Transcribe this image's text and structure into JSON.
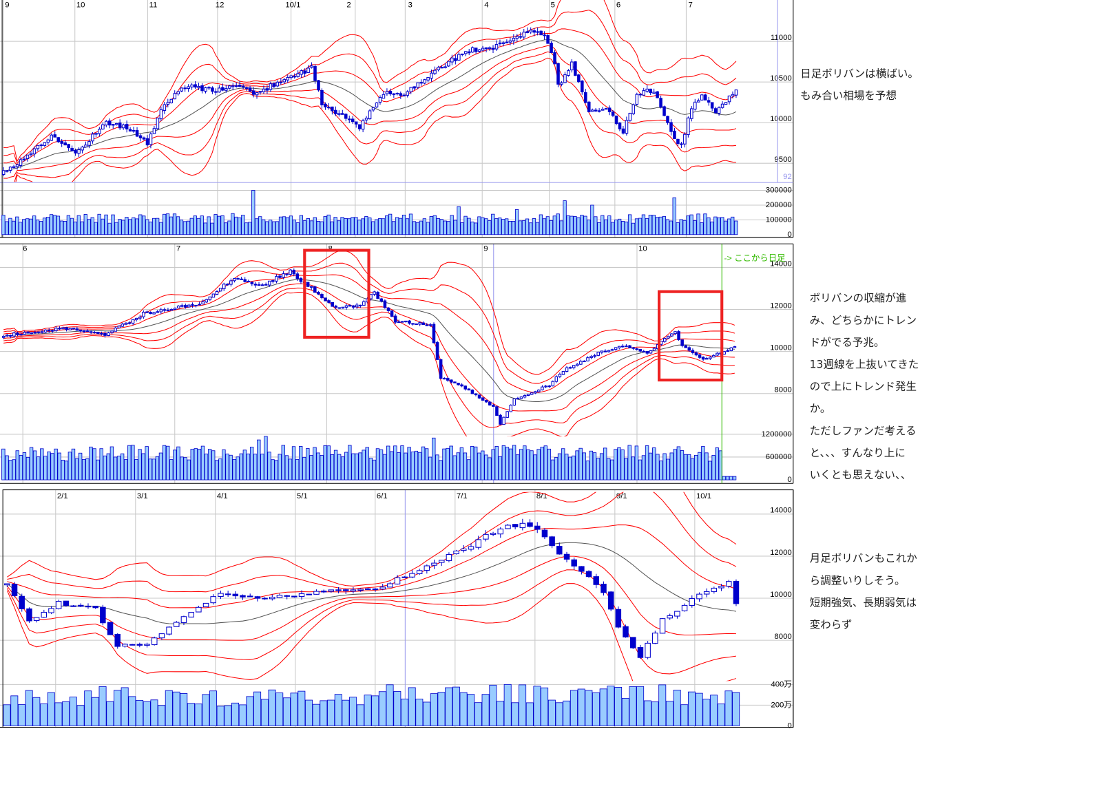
{
  "chart_data": [
    {
      "type": "candlestick",
      "timeframe_hint": "日足",
      "date_labels": [
        "9",
        "10",
        "11",
        "12",
        "10/1",
        "2",
        "3",
        "4",
        "5",
        "6",
        "7"
      ],
      "price_ticks": [
        9500,
        10000,
        10500,
        11000
      ],
      "price_tick_labels": [
        "9500",
        "10000",
        "10500",
        "11000"
      ],
      "volume_tick_labels": [
        "300000",
        "200000",
        "100000",
        "0"
      ],
      "volume_ticks": [
        300000,
        200000,
        100000,
        0
      ],
      "price_marker": "92",
      "candles": 215,
      "approx_closes": [
        [
          0,
          9400
        ],
        [
          5,
          9530
        ],
        [
          14,
          9840
        ],
        [
          21,
          9620
        ],
        [
          30,
          10010
        ],
        [
          37,
          9920
        ],
        [
          42,
          9750
        ],
        [
          47,
          10230
        ],
        [
          53,
          10450
        ],
        [
          61,
          10400
        ],
        [
          68,
          10450
        ],
        [
          74,
          10360
        ],
        [
          82,
          10540
        ],
        [
          90,
          10670
        ],
        [
          93,
          10230
        ],
        [
          102,
          10010
        ],
        [
          104,
          9940
        ],
        [
          111,
          10360
        ],
        [
          117,
          10360
        ],
        [
          127,
          10670
        ],
        [
          136,
          10890
        ],
        [
          144,
          10930
        ],
        [
          154,
          11160
        ],
        [
          158,
          11070
        ],
        [
          161,
          10720
        ],
        [
          162,
          10450
        ],
        [
          166,
          10720
        ],
        [
          171,
          10150
        ],
        [
          176,
          10190
        ],
        [
          181,
          9880
        ],
        [
          185,
          10360
        ],
        [
          190,
          10400
        ],
        [
          195,
          9880
        ],
        [
          198,
          9710
        ],
        [
          201,
          10190
        ],
        [
          204,
          10320
        ],
        [
          208,
          10150
        ],
        [
          214,
          10400
        ]
      ],
      "volume_base": 110000,
      "volume_spikes": [
        [
          73,
          300000
        ],
        [
          133,
          190000
        ],
        [
          150,
          170000
        ],
        [
          164,
          230000
        ],
        [
          196,
          250000
        ],
        [
          172,
          200000
        ]
      ],
      "indicators": [
        "MA",
        "Bollinger ±1σ",
        "±2σ",
        "±3σ"
      ]
    },
    {
      "type": "candlestick",
      "date_labels": [
        "6",
        "7",
        "8",
        "9",
        "10"
      ],
      "price_ticks": [
        8000,
        10000,
        12000,
        14000
      ],
      "price_tick_labels": [
        "8000",
        "10000",
        "12000",
        "14000"
      ],
      "volume_ticks": [
        1200000,
        600000,
        0
      ],
      "volume_tick_labels": [
        "1200000",
        "600000",
        "0"
      ],
      "marker_label": "-> ここから日足",
      "candles": 210,
      "approx_closes": [
        [
          0,
          10780
        ],
        [
          19,
          11120
        ],
        [
          29,
          10780
        ],
        [
          40,
          11800
        ],
        [
          56,
          12300
        ],
        [
          66,
          13490
        ],
        [
          74,
          13150
        ],
        [
          82,
          13830
        ],
        [
          88,
          12980
        ],
        [
          94,
          12140
        ],
        [
          102,
          12140
        ],
        [
          106,
          12810
        ],
        [
          112,
          11460
        ],
        [
          122,
          11290
        ],
        [
          125,
          8750
        ],
        [
          132,
          8240
        ],
        [
          140,
          7390
        ],
        [
          142,
          6540
        ],
        [
          146,
          7730
        ],
        [
          156,
          8410
        ],
        [
          160,
          9090
        ],
        [
          170,
          9930
        ],
        [
          178,
          10270
        ],
        [
          184,
          9930
        ],
        [
          192,
          10950
        ],
        [
          194,
          10270
        ],
        [
          200,
          9590
        ],
        [
          209,
          10200
        ]
      ],
      "volume_base": 700000,
      "volume_spikes": [
        [
          75,
          1200000
        ],
        [
          73,
          1050000
        ],
        [
          123,
          1100000
        ],
        [
          92,
          900000
        ],
        [
          143,
          900000
        ]
      ],
      "daily_from_index": 206,
      "highlight_boxes": 2
    },
    {
      "type": "candlestick",
      "date_labels": [
        "2/1",
        "3/1",
        "4/1",
        "5/1",
        "6/1",
        "7/1",
        "8/1",
        "9/1",
        "10/1"
      ],
      "price_ticks": [
        8000,
        10000,
        12000,
        14000
      ],
      "price_tick_labels": [
        "8000",
        "10000",
        "12000",
        "14000"
      ],
      "volume_ticks": [
        4000000,
        2000000,
        0
      ],
      "volume_tick_labels": [
        "400万",
        "200万",
        "0"
      ],
      "candles": 100,
      "approx_closes": [
        [
          0,
          10710
        ],
        [
          3,
          8950
        ],
        [
          7,
          9800
        ],
        [
          12,
          9460
        ],
        [
          15,
          7760
        ],
        [
          19,
          7760
        ],
        [
          22,
          8610
        ],
        [
          29,
          10300
        ],
        [
          34,
          9970
        ],
        [
          39,
          10140
        ],
        [
          44,
          10300
        ],
        [
          50,
          10470
        ],
        [
          55,
          11150
        ],
        [
          60,
          12000
        ],
        [
          63,
          12510
        ],
        [
          67,
          13360
        ],
        [
          71,
          13530
        ],
        [
          74,
          12510
        ],
        [
          78,
          11320
        ],
        [
          81,
          10300
        ],
        [
          83,
          8610
        ],
        [
          86,
          7250
        ],
        [
          89,
          8950
        ],
        [
          94,
          10140
        ],
        [
          98,
          10810
        ],
        [
          99,
          9800
        ]
      ],
      "volume_base": 2700000,
      "volume_spikes": [
        [
          13,
          3800000
        ],
        [
          16,
          3700000
        ],
        [
          55,
          3700000
        ],
        [
          68,
          4000000
        ],
        [
          85,
          3800000
        ]
      ]
    }
  ],
  "annotations": {
    "daily": [
      "日足ボリバンは横ばい。",
      "もみ合い相場を予想"
    ],
    "weekly": [
      "ボリバンの収縮が進",
      "み、どちらかにトレン",
      "ドがでる予兆。",
      "13週線を上抜いてきた",
      "ので上にトレンド発生",
      "か。",
      "ただしファンだ考える",
      "と、、、すんなり上に",
      "いくとも思えない、、"
    ],
    "monthly": [
      "月足ボリバンもこれか",
      "ら調整いりしそう。",
      "短期強気、長期弱気は",
      "変わらず"
    ]
  },
  "colors": {
    "candle": "#0000cc",
    "band": "#ff0000",
    "ma": "#555555",
    "volume": "#99ccff",
    "grid": "#c8c8c8",
    "marker_line": "#33bb00",
    "highlight": "#ee2222"
  }
}
